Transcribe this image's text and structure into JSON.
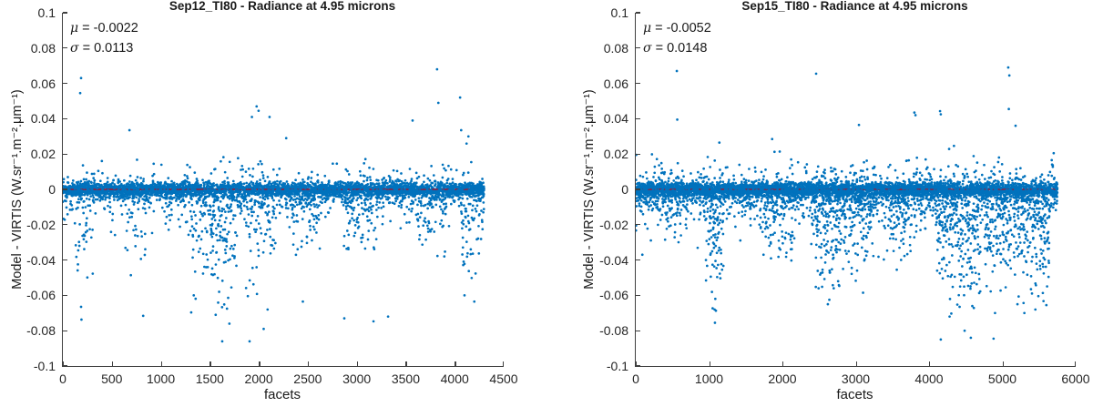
{
  "figure": {
    "background": "#ffffff"
  },
  "chart_data": {
    "type": "scatter",
    "plots": [
      {
        "title": "Sep12_TI80 - Radiance at 4.95 microns",
        "xlabel": "facets",
        "ylabel": "Model - VIRTIS (W.sr⁻¹.m⁻².μm⁻¹)",
        "annotation": {
          "mu_symbol": "μ",
          "mu_value": "= -0.0022",
          "sigma_symbol": "σ",
          "sigma_value": "= 0.0113"
        },
        "stats": {
          "mu": -0.0022,
          "sigma": 0.0113
        },
        "xlim": [
          0,
          4500
        ],
        "ylim": [
          -0.1,
          0.1
        ],
        "xtick_labels": [
          "0",
          "500",
          "1000",
          "1500",
          "2000",
          "2500",
          "3000",
          "3500",
          "4000",
          "4500"
        ],
        "ytick_labels": [
          "0.1",
          "0.08",
          "0.06",
          "0.04",
          "0.02",
          "0",
          "-0.02",
          "-0.04",
          "-0.06",
          "-0.08",
          "-0.1"
        ],
        "marker_color": "#0072BD",
        "zero_line_color": "#A2142F",
        "n_points": 4300,
        "x_data_max": 4300,
        "seed": 12,
        "base_model": {
          "core_sigma": 0.0018,
          "sub_band_prob": 0.12,
          "sub_band_scale": 0.0045,
          "neg_tail_prob": 0.1,
          "neg_tail_scale": 0.011,
          "pos_tail_prob": 0.05,
          "pos_tail_scale": 0.0075
        },
        "clusters": [
          {
            "x0": 120,
            "x1": 330,
            "depth": -0.055,
            "p": 0.2
          },
          {
            "x0": 630,
            "x1": 850,
            "depth": -0.05,
            "p": 0.22
          },
          {
            "x0": 1300,
            "x1": 1780,
            "depth": -0.07,
            "p": 0.38
          },
          {
            "x0": 1850,
            "x1": 2170,
            "depth": -0.062,
            "p": 0.34
          },
          {
            "x0": 2300,
            "x1": 2630,
            "depth": -0.04,
            "p": 0.26
          },
          {
            "x0": 2850,
            "x1": 3200,
            "depth": -0.045,
            "p": 0.24
          },
          {
            "x0": 3600,
            "x1": 3900,
            "depth": -0.045,
            "p": 0.26
          },
          {
            "x0": 4040,
            "x1": 4300,
            "depth": -0.058,
            "p": 0.3
          }
        ],
        "outliers": [
          [
            186,
            0.063
          ],
          [
            177,
            0.0545
          ],
          [
            680,
            0.0335
          ],
          [
            1930,
            0.041
          ],
          [
            1978,
            0.047
          ],
          [
            1998,
            0.0445
          ],
          [
            2110,
            0.041
          ],
          [
            2280,
            0.029
          ],
          [
            3570,
            0.039
          ],
          [
            3820,
            0.068
          ],
          [
            3833,
            0.049
          ],
          [
            4055,
            0.052
          ],
          [
            4066,
            0.0335
          ],
          [
            4140,
            0.03
          ],
          [
            186,
            -0.0665
          ],
          [
            190,
            -0.0737
          ],
          [
            820,
            -0.0716
          ],
          [
            1560,
            -0.071
          ],
          [
            1627,
            -0.086
          ],
          [
            1700,
            -0.076
          ],
          [
            1906,
            -0.086
          ],
          [
            2050,
            -0.079
          ],
          [
            2090,
            -0.068
          ],
          [
            2450,
            -0.0635
          ],
          [
            2873,
            -0.073
          ],
          [
            3171,
            -0.0747
          ],
          [
            3320,
            -0.072
          ],
          [
            4100,
            -0.06
          ],
          [
            4200,
            -0.0635
          ]
        ]
      },
      {
        "title": "Sep15_TI80 - Radiance at 4.95 microns",
        "xlabel": "facets",
        "ylabel": "Model - VIRTIS (W.sr⁻¹.m⁻².μm⁻¹)",
        "annotation": {
          "mu_symbol": "μ",
          "mu_value": "= -0.0052",
          "sigma_symbol": "σ",
          "sigma_value": "= 0.0148"
        },
        "stats": {
          "mu": -0.0052,
          "sigma": 0.0148
        },
        "xlim": [
          0,
          6000
        ],
        "ylim": [
          -0.1,
          0.1
        ],
        "xtick_labels": [
          "0",
          "1000",
          "2000",
          "3000",
          "4000",
          "5000",
          "6000"
        ],
        "ytick_labels": [
          "0.1",
          "0.08",
          "0.06",
          "0.04",
          "0.02",
          "0",
          "-0.02",
          "-0.04",
          "-0.06",
          "-0.08",
          "-0.1"
        ],
        "marker_color": "#0072BD",
        "zero_line_color": "#A2142F",
        "n_points": 5750,
        "x_data_max": 5750,
        "seed": 15,
        "base_model": {
          "core_sigma": 0.0018,
          "sub_band_prob": 0.13,
          "sub_band_scale": 0.005,
          "neg_tail_prob": 0.13,
          "neg_tail_scale": 0.012,
          "pos_tail_prob": 0.06,
          "pos_tail_scale": 0.008
        },
        "clusters": [
          {
            "x0": 350,
            "x1": 700,
            "depth": -0.032,
            "p": 0.22
          },
          {
            "x0": 950,
            "x1": 1200,
            "depth": -0.07,
            "p": 0.45
          },
          {
            "x0": 1700,
            "x1": 2150,
            "depth": -0.045,
            "p": 0.3
          },
          {
            "x0": 2400,
            "x1": 2880,
            "depth": -0.062,
            "p": 0.45
          },
          {
            "x0": 2900,
            "x1": 3260,
            "depth": -0.052,
            "p": 0.38
          },
          {
            "x0": 3380,
            "x1": 3750,
            "depth": -0.042,
            "p": 0.28
          },
          {
            "x0": 4100,
            "x1": 4700,
            "depth": -0.072,
            "p": 0.48
          },
          {
            "x0": 4750,
            "x1": 5120,
            "depth": -0.062,
            "p": 0.42
          },
          {
            "x0": 5150,
            "x1": 5650,
            "depth": -0.066,
            "p": 0.45
          }
        ],
        "outliers": [
          [
            560,
            0.067
          ],
          [
            566,
            0.0395
          ],
          [
            1140,
            0.0265
          ],
          [
            1860,
            0.0285
          ],
          [
            2460,
            0.0655
          ],
          [
            3044,
            0.0365
          ],
          [
            3800,
            0.0435
          ],
          [
            3815,
            0.042
          ],
          [
            4150,
            0.0443
          ],
          [
            4160,
            0.0425
          ],
          [
            5080,
            0.069
          ],
          [
            5095,
            0.0645
          ],
          [
            5088,
            0.0455
          ],
          [
            5180,
            0.036
          ],
          [
            5700,
            0.0205
          ],
          [
            90,
            -0.037
          ],
          [
            1075,
            -0.068
          ],
          [
            1080,
            -0.0755
          ],
          [
            1085,
            -0.062
          ],
          [
            2620,
            -0.065
          ],
          [
            2640,
            -0.0625
          ],
          [
            2700,
            -0.056
          ],
          [
            2760,
            -0.052
          ],
          [
            3100,
            -0.0585
          ],
          [
            3560,
            -0.0455
          ],
          [
            4160,
            -0.085
          ],
          [
            4280,
            -0.072
          ],
          [
            4485,
            -0.08
          ],
          [
            4570,
            -0.084
          ],
          [
            4880,
            -0.0845
          ],
          [
            4900,
            -0.07
          ],
          [
            5300,
            -0.07
          ],
          [
            5450,
            -0.068
          ],
          [
            5600,
            -0.0655
          ]
        ]
      }
    ]
  }
}
